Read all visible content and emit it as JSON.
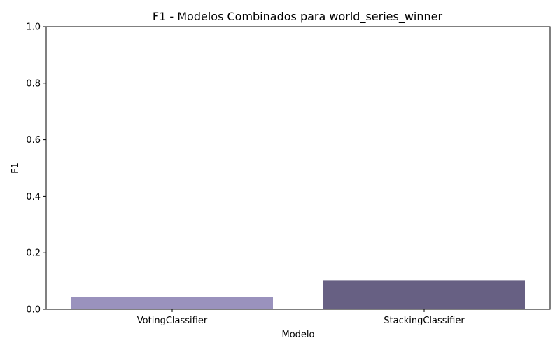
{
  "chart_data": {
    "type": "bar",
    "title": "F1 - Modelos Combinados para world_series_winner",
    "xlabel": "Modelo",
    "ylabel": "F1",
    "categories": [
      "VotingClassifier",
      "StackingClassifier"
    ],
    "values": [
      0.044,
      0.103
    ],
    "colors": [
      "#9a92bd",
      "#676083"
    ],
    "ylim": [
      0,
      1.0
    ],
    "yticks": [
      "0.0",
      "0.2",
      "0.4",
      "0.6",
      "0.8",
      "1.0"
    ],
    "grid": false,
    "legend": "none"
  }
}
